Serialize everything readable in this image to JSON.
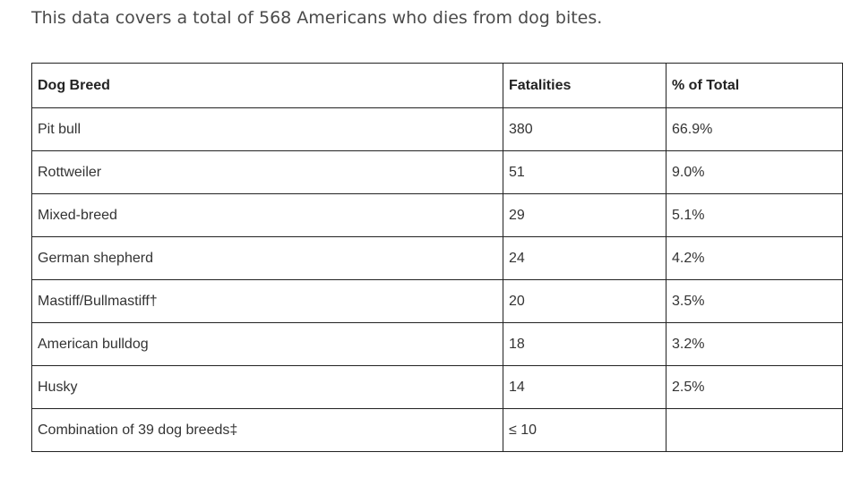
{
  "intro_text": "This data covers a total of 568 Americans who dies from dog bites.",
  "table": {
    "headers": {
      "breed": "Dog Breed",
      "fatalities": "Fatalities",
      "percent": "% of Total"
    },
    "rows": [
      {
        "breed": "Pit bull",
        "fatalities": "380",
        "percent": "66.9%"
      },
      {
        "breed": "Rottweiler",
        "fatalities": "51",
        "percent": "9.0%"
      },
      {
        "breed": "Mixed-breed",
        "fatalities": "29",
        "percent": "5.1%"
      },
      {
        "breed": "German shepherd",
        "fatalities": "24",
        "percent": "4.2%"
      },
      {
        "breed": "Mastiff/Bullmastiff†",
        "fatalities": "20",
        "percent": "3.5%"
      },
      {
        "breed": "American bulldog",
        "fatalities": "18",
        "percent": "3.2%"
      },
      {
        "breed": "Husky",
        "fatalities": "14",
        "percent": "2.5%"
      },
      {
        "breed": "Combination of 39 dog breeds‡",
        "fatalities": "≤ 10",
        "percent": ""
      }
    ]
  }
}
